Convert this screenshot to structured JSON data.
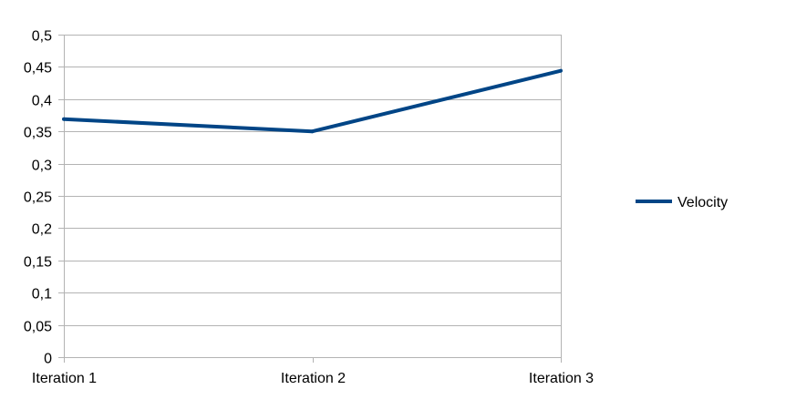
{
  "chart_data": {
    "type": "line",
    "title": "",
    "xlabel": "",
    "ylabel": "",
    "categories": [
      "Iteration 1",
      "Iteration 2",
      "Iteration 3"
    ],
    "series": [
      {
        "name": "Velocity",
        "values": [
          0.369,
          0.35,
          0.444
        ],
        "color": "#004586"
      }
    ],
    "ylim": [
      0,
      0.5
    ],
    "yticks": [
      0,
      0.05,
      0.1,
      0.15,
      0.2,
      0.25,
      0.3,
      0.35,
      0.4,
      0.45,
      0.5
    ],
    "ytick_labels": [
      "0",
      "0,05",
      "0,1",
      "0,15",
      "0,2",
      "0,25",
      "0,3",
      "0,35",
      "0,4",
      "0,45",
      "0,5"
    ],
    "grid": true,
    "legend_position": "right"
  }
}
